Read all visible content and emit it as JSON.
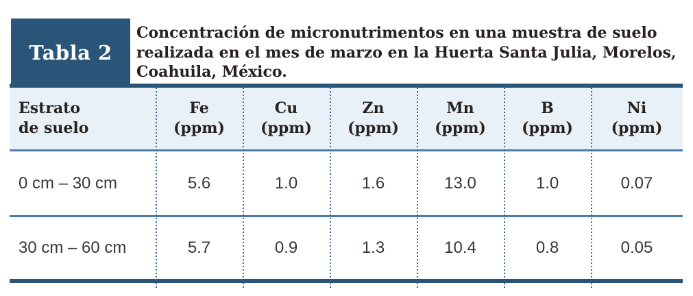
{
  "badge": {
    "label": "Tabla 2"
  },
  "caption": {
    "lines": [
      "Concentración de micronutrimentos en una muestra de suelo",
      "realizada en el mes de marzo en la Huerta Santa Julia, Morelos,",
      "Coahuila, México."
    ]
  },
  "table": {
    "row_header": {
      "line1": "Estrato",
      "line2": "de suelo"
    },
    "columns": [
      {
        "element": "Fe",
        "unit": "(ppm)"
      },
      {
        "element": "Cu",
        "unit": "(ppm)"
      },
      {
        "element": "Zn",
        "unit": "(ppm)"
      },
      {
        "element": "Mn",
        "unit": "(ppm)"
      },
      {
        "element": "B",
        "unit": "(ppm)"
      },
      {
        "element": "Ni",
        "unit": "(ppm)"
      }
    ],
    "rows": [
      {
        "label": "0 cm – 30 cm",
        "values": [
          "5.6",
          "1.0",
          "1.6",
          "13.0",
          "1.0",
          "0.07"
        ]
      },
      {
        "label": "30 cm – 60 cm",
        "values": [
          "5.7",
          "0.9",
          "1.3",
          "10.4",
          "0.8",
          "0.05"
        ]
      }
    ]
  },
  "colors": {
    "dark_blue_bar": "#2a5478",
    "steel_blue_divider": "#4c7ca8",
    "dot_blue": "#36679a",
    "header_background": "#e9f1f8",
    "heading_text": "#272220",
    "data_text": "#3c3534"
  }
}
